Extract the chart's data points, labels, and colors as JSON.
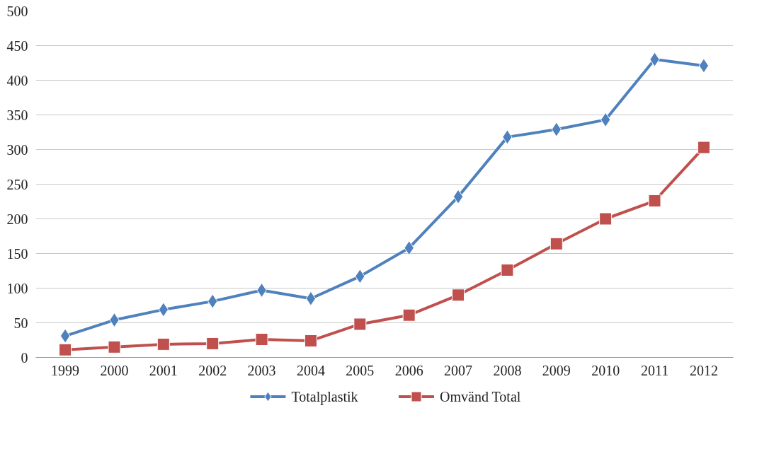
{
  "chart_data": {
    "type": "line",
    "categories": [
      "1999",
      "2000",
      "2001",
      "2002",
      "2003",
      "2004",
      "2005",
      "2006",
      "2007",
      "2008",
      "2009",
      "2010",
      "2011",
      "2012"
    ],
    "series": [
      {
        "name": "Totalplastik",
        "color": "#4f81bd",
        "marker": "diamond",
        "values": [
          31,
          54,
          69,
          81,
          97,
          85,
          117,
          158,
          232,
          318,
          329,
          343,
          430,
          421
        ]
      },
      {
        "name": "Omvänd Total",
        "color": "#c0504d",
        "marker": "square",
        "values": [
          11,
          15,
          19,
          20,
          26,
          24,
          48,
          61,
          90,
          126,
          164,
          200,
          226,
          303
        ]
      }
    ],
    "ylim": [
      0,
      500
    ],
    "yticks": [
      0,
      50,
      100,
      150,
      200,
      250,
      300,
      350,
      400,
      450,
      500
    ],
    "grid": "y",
    "legend": "bottom",
    "line_style": "solid"
  }
}
